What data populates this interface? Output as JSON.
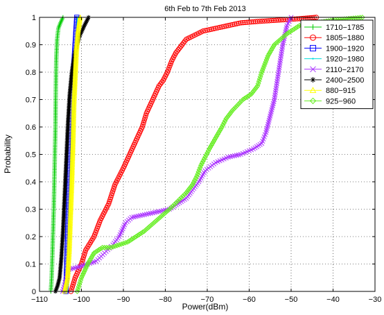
{
  "chart_data": {
    "type": "line",
    "title": "6th Feb to 7th Feb 2013",
    "xlabel": "Power(dBm)",
    "ylabel": "Probability",
    "xlim": [
      -110,
      -30
    ],
    "ylim": [
      0,
      1
    ],
    "xticks": [
      -110,
      -100,
      -90,
      -80,
      -70,
      -60,
      -50,
      -40,
      -30
    ],
    "yticks": [
      0,
      0.1,
      0.2,
      0.3,
      0.4,
      0.5,
      0.6,
      0.7,
      0.8,
      0.9,
      1
    ],
    "xtick_labels": [
      "−110",
      "−100",
      "−90",
      "−80",
      "−70",
      "−60",
      "−50",
      "−40",
      "−30"
    ],
    "ytick_labels": [
      "0",
      "0.1",
      "0.2",
      "0.3",
      "0.4",
      "0.5",
      "0.6",
      "0.7",
      "0.8",
      "0.9",
      "1"
    ],
    "grid": true,
    "legend_position": "top-right",
    "series": [
      {
        "name": "1710−1785",
        "color": "#00cc00",
        "marker": "plus",
        "x": [
          -107.3,
          -107.1,
          -106.9,
          -106.6,
          -106.4,
          -106.2,
          -106.1,
          -106.0,
          -105.8,
          -105.5,
          -105.0,
          -104.7,
          -104.4
        ],
        "y": [
          0.0,
          0.05,
          0.15,
          0.3,
          0.45,
          0.6,
          0.75,
          0.85,
          0.92,
          0.96,
          0.98,
          0.99,
          1.0
        ]
      },
      {
        "name": "1805−1880",
        "color": "#ff0000",
        "marker": "circle",
        "x": [
          -102.5,
          -101.5,
          -100.0,
          -99.0,
          -97.0,
          -95.5,
          -93.5,
          -92.0,
          -90.0,
          -88.5,
          -87.0,
          -85.5,
          -84.5,
          -83.0,
          -81.5,
          -80.5,
          -79.5,
          -78.5,
          -77.5,
          -76.0,
          -75.0,
          -73.0,
          -71.0,
          -68.0,
          -65.0,
          -62.0,
          -58.0,
          -53.0,
          -48.0,
          -44.0
        ],
        "y": [
          0.0,
          0.05,
          0.1,
          0.15,
          0.2,
          0.26,
          0.32,
          0.39,
          0.45,
          0.5,
          0.55,
          0.6,
          0.65,
          0.7,
          0.75,
          0.77,
          0.8,
          0.84,
          0.87,
          0.9,
          0.92,
          0.935,
          0.95,
          0.96,
          0.97,
          0.98,
          0.985,
          0.99,
          0.995,
          1.0
        ]
      },
      {
        "name": "1900−1920",
        "color": "#0000ff",
        "marker": "square",
        "x": [
          -103.7,
          -103.5,
          -103.3,
          -103.1,
          -102.9,
          -102.7,
          -102.5,
          -102.2,
          -101.9,
          -101.5,
          -101.1
        ],
        "y": [
          0.0,
          0.1,
          0.2,
          0.3,
          0.4,
          0.5,
          0.6,
          0.7,
          0.8,
          0.9,
          1.0
        ]
      },
      {
        "name": "1920−1980",
        "color": "#00dddd",
        "marker": "point",
        "x": [
          -103.4,
          -103.2,
          -103.0,
          -102.8,
          -102.6,
          -102.4,
          -102.2,
          -102.0,
          -101.7,
          -101.3,
          -100.9
        ],
        "y": [
          0.0,
          0.1,
          0.2,
          0.3,
          0.4,
          0.5,
          0.6,
          0.7,
          0.8,
          0.9,
          1.0
        ]
      },
      {
        "name": "2110−2170",
        "color": "#aa33ff",
        "marker": "x",
        "x": [
          -104.5,
          -103.0,
          -100.5,
          -98.5,
          -96.5,
          -94.5,
          -92.5,
          -91.0,
          -89.5,
          -88.0,
          -85.0,
          -82.0,
          -79.0,
          -77.0,
          -75.0,
          -73.5,
          -72.0,
          -70.5,
          -68.0,
          -65.0,
          -62.0,
          -59.0,
          -57.0,
          -56.0,
          -55.0,
          -54.0,
          -53.0,
          -52.0,
          -51.0,
          -50.0
        ],
        "y": [
          0.0,
          0.08,
          0.09,
          0.1,
          0.11,
          0.14,
          0.17,
          0.2,
          0.25,
          0.27,
          0.28,
          0.29,
          0.3,
          0.32,
          0.34,
          0.37,
          0.4,
          0.44,
          0.47,
          0.49,
          0.5,
          0.52,
          0.54,
          0.58,
          0.64,
          0.7,
          0.8,
          0.9,
          0.97,
          1.0
        ]
      },
      {
        "name": "2400−2500",
        "color": "#000000",
        "marker": "star",
        "x": [
          -106.2,
          -105.7,
          -105.2,
          -104.8,
          -104.4,
          -104.1,
          -103.8,
          -103.5,
          -103.2,
          -102.8,
          -102.3,
          -101.6,
          -100.5,
          -99.3,
          -98.3
        ],
        "y": [
          0.0,
          0.02,
          0.05,
          0.12,
          0.22,
          0.32,
          0.42,
          0.52,
          0.62,
          0.72,
          0.8,
          0.87,
          0.93,
          0.97,
          1.0
        ]
      },
      {
        "name": "880−915",
        "color": "#ffff00",
        "marker": "triangle",
        "x": [
          -104.0,
          -103.3,
          -102.9,
          -102.6,
          -102.3,
          -102.0,
          -101.8,
          -101.5,
          -101.2,
          -100.8,
          -100.3
        ],
        "y": [
          0.0,
          0.05,
          0.15,
          0.28,
          0.4,
          0.55,
          0.68,
          0.78,
          0.88,
          0.95,
          1.0
        ]
      },
      {
        "name": "925−960",
        "color": "#66ee22",
        "marker": "diamond",
        "x": [
          -101.0,
          -100.0,
          -98.5,
          -97.0,
          -95.0,
          -93.0,
          -91.0,
          -89.0,
          -87.0,
          -85.0,
          -82.0,
          -79.0,
          -77.0,
          -75.0,
          -73.5,
          -72.5,
          -71.5,
          -69.5,
          -68.0,
          -66.5,
          -65.5,
          -64.0,
          -61.5,
          -59.5,
          -58.0,
          -57.0,
          -55.5,
          -54.0,
          -51.0,
          -48.0,
          -40.0,
          -33.0
        ],
        "y": [
          0.0,
          0.05,
          0.1,
          0.14,
          0.16,
          0.16,
          0.17,
          0.18,
          0.2,
          0.22,
          0.26,
          0.3,
          0.33,
          0.36,
          0.39,
          0.42,
          0.46,
          0.52,
          0.56,
          0.6,
          0.63,
          0.66,
          0.7,
          0.72,
          0.75,
          0.8,
          0.86,
          0.9,
          0.94,
          0.97,
          0.99,
          1.0
        ]
      }
    ]
  }
}
